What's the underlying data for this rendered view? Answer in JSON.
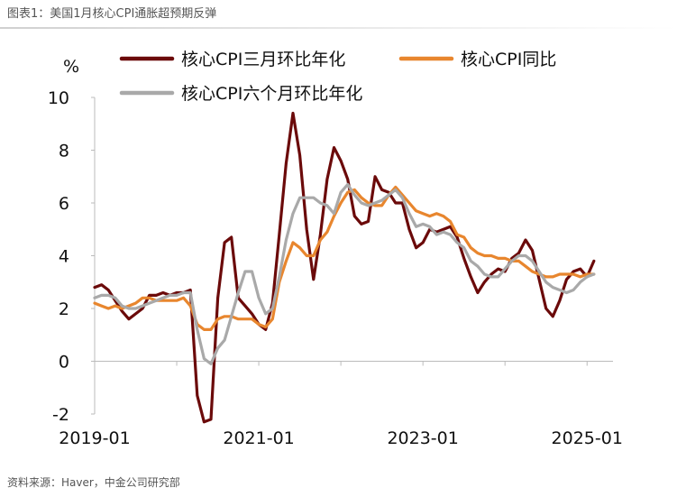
{
  "caption": "图表1：美国1月核心CPI通胀超预期反弹",
  "source": "资料来源：Haver，中金公司研究部",
  "colors": {
    "three_month": "#6b0a0a",
    "yoy": "#e8862e",
    "six_month": "#a9a9a9"
  },
  "chart_data": {
    "type": "line",
    "ylabel": "%",
    "ylim": [
      -2,
      10
    ],
    "yticks": [
      -2,
      0,
      2,
      4,
      6,
      8,
      10
    ],
    "xlim": [
      "2019-01",
      "2025-01"
    ],
    "xticks": [
      "2019-01",
      "2021-01",
      "2023-01",
      "2025-01"
    ],
    "legend": {
      "placement": "top"
    },
    "series": [
      {
        "name": "核心CPI三月环比年化",
        "color": "#6b0a0a",
        "points": [
          [
            "2019-01",
            2.8
          ],
          [
            "2019-02",
            2.9
          ],
          [
            "2019-03",
            2.7
          ],
          [
            "2019-04",
            2.3
          ],
          [
            "2019-05",
            1.9
          ],
          [
            "2019-06",
            1.6
          ],
          [
            "2019-07",
            1.8
          ],
          [
            "2019-08",
            2.0
          ],
          [
            "2019-09",
            2.5
          ],
          [
            "2019-10",
            2.5
          ],
          [
            "2019-11",
            2.6
          ],
          [
            "2019-12",
            2.5
          ],
          [
            "2020-01",
            2.6
          ],
          [
            "2020-02",
            2.6
          ],
          [
            "2020-03",
            2.7
          ],
          [
            "2020-04",
            -1.3
          ],
          [
            "2020-05",
            -2.3
          ],
          [
            "2020-06",
            -2.2
          ],
          [
            "2020-07",
            2.4
          ],
          [
            "2020-08",
            4.5
          ],
          [
            "2020-09",
            4.7
          ],
          [
            "2020-10",
            2.4
          ],
          [
            "2020-11",
            2.1
          ],
          [
            "2020-12",
            1.8
          ],
          [
            "2021-01",
            1.4
          ],
          [
            "2021-02",
            1.2
          ],
          [
            "2021-03",
            2.2
          ],
          [
            "2021-04",
            4.8
          ],
          [
            "2021-05",
            7.5
          ],
          [
            "2021-06",
            9.4
          ],
          [
            "2021-07",
            7.8
          ],
          [
            "2021-08",
            5.0
          ],
          [
            "2021-09",
            3.1
          ],
          [
            "2021-10",
            4.8
          ],
          [
            "2021-11",
            6.9
          ],
          [
            "2021-12",
            8.1
          ],
          [
            "2022-01",
            7.6
          ],
          [
            "2022-02",
            6.9
          ],
          [
            "2022-03",
            5.5
          ],
          [
            "2022-04",
            5.2
          ],
          [
            "2022-05",
            5.3
          ],
          [
            "2022-06",
            7.0
          ],
          [
            "2022-07",
            6.5
          ],
          [
            "2022-08",
            6.4
          ],
          [
            "2022-09",
            6.0
          ],
          [
            "2022-10",
            6.0
          ],
          [
            "2022-11",
            5.0
          ],
          [
            "2022-12",
            4.3
          ],
          [
            "2023-01",
            4.5
          ],
          [
            "2023-02",
            5.0
          ],
          [
            "2023-03",
            4.9
          ],
          [
            "2023-04",
            5.0
          ],
          [
            "2023-05",
            5.1
          ],
          [
            "2023-06",
            4.7
          ],
          [
            "2023-07",
            3.9
          ],
          [
            "2023-08",
            3.2
          ],
          [
            "2023-09",
            2.6
          ],
          [
            "2023-10",
            3.0
          ],
          [
            "2023-11",
            3.3
          ],
          [
            "2023-12",
            3.5
          ],
          [
            "2024-01",
            3.4
          ],
          [
            "2024-02",
            3.9
          ],
          [
            "2024-03",
            4.1
          ],
          [
            "2024-04",
            4.6
          ],
          [
            "2024-05",
            4.2
          ],
          [
            "2024-06",
            3.1
          ],
          [
            "2024-07",
            2.0
          ],
          [
            "2024-08",
            1.7
          ],
          [
            "2024-09",
            2.3
          ],
          [
            "2024-10",
            3.1
          ],
          [
            "2024-11",
            3.4
          ],
          [
            "2024-12",
            3.5
          ],
          [
            "2025-01",
            3.2
          ],
          [
            "2025-02",
            3.8
          ]
        ]
      },
      {
        "name": "核心CPI同比",
        "color": "#e8862e",
        "points": [
          [
            "2019-01",
            2.2
          ],
          [
            "2019-02",
            2.1
          ],
          [
            "2019-03",
            2.0
          ],
          [
            "2019-04",
            2.1
          ],
          [
            "2019-05",
            2.0
          ],
          [
            "2019-06",
            2.1
          ],
          [
            "2019-07",
            2.2
          ],
          [
            "2019-08",
            2.4
          ],
          [
            "2019-09",
            2.4
          ],
          [
            "2019-10",
            2.3
          ],
          [
            "2019-11",
            2.3
          ],
          [
            "2019-12",
            2.3
          ],
          [
            "2020-01",
            2.3
          ],
          [
            "2020-02",
            2.4
          ],
          [
            "2020-03",
            2.1
          ],
          [
            "2020-04",
            1.4
          ],
          [
            "2020-05",
            1.2
          ],
          [
            "2020-06",
            1.2
          ],
          [
            "2020-07",
            1.6
          ],
          [
            "2020-08",
            1.7
          ],
          [
            "2020-09",
            1.7
          ],
          [
            "2020-10",
            1.6
          ],
          [
            "2020-11",
            1.6
          ],
          [
            "2020-12",
            1.6
          ],
          [
            "2021-01",
            1.4
          ],
          [
            "2021-02",
            1.3
          ],
          [
            "2021-03",
            1.6
          ],
          [
            "2021-04",
            3.0
          ],
          [
            "2021-05",
            3.8
          ],
          [
            "2021-06",
            4.5
          ],
          [
            "2021-07",
            4.3
          ],
          [
            "2021-08",
            4.0
          ],
          [
            "2021-09",
            4.0
          ],
          [
            "2021-10",
            4.6
          ],
          [
            "2021-11",
            4.9
          ],
          [
            "2021-12",
            5.5
          ],
          [
            "2022-01",
            6.0
          ],
          [
            "2022-02",
            6.4
          ],
          [
            "2022-03",
            6.5
          ],
          [
            "2022-04",
            6.2
          ],
          [
            "2022-05",
            6.0
          ],
          [
            "2022-06",
            5.9
          ],
          [
            "2022-07",
            5.9
          ],
          [
            "2022-08",
            6.3
          ],
          [
            "2022-09",
            6.6
          ],
          [
            "2022-10",
            6.3
          ],
          [
            "2022-11",
            6.0
          ],
          [
            "2022-12",
            5.7
          ],
          [
            "2023-01",
            5.6
          ],
          [
            "2023-02",
            5.5
          ],
          [
            "2023-03",
            5.6
          ],
          [
            "2023-04",
            5.5
          ],
          [
            "2023-05",
            5.3
          ],
          [
            "2023-06",
            4.8
          ],
          [
            "2023-07",
            4.7
          ],
          [
            "2023-08",
            4.3
          ],
          [
            "2023-09",
            4.1
          ],
          [
            "2023-10",
            4.0
          ],
          [
            "2023-11",
            4.0
          ],
          [
            "2023-12",
            3.9
          ],
          [
            "2024-01",
            3.9
          ],
          [
            "2024-02",
            3.8
          ],
          [
            "2024-03",
            3.8
          ],
          [
            "2024-04",
            3.6
          ],
          [
            "2024-05",
            3.4
          ],
          [
            "2024-06",
            3.3
          ],
          [
            "2024-07",
            3.2
          ],
          [
            "2024-08",
            3.2
          ],
          [
            "2024-09",
            3.3
          ],
          [
            "2024-10",
            3.3
          ],
          [
            "2024-11",
            3.3
          ],
          [
            "2024-12",
            3.2
          ],
          [
            "2025-01",
            3.3
          ],
          [
            "2025-02",
            3.3
          ]
        ]
      },
      {
        "name": "核心CPI六个月环比年化",
        "color": "#a9a9a9",
        "points": [
          [
            "2019-01",
            2.4
          ],
          [
            "2019-02",
            2.5
          ],
          [
            "2019-03",
            2.5
          ],
          [
            "2019-04",
            2.4
          ],
          [
            "2019-05",
            2.1
          ],
          [
            "2019-06",
            2.0
          ],
          [
            "2019-07",
            2.0
          ],
          [
            "2019-08",
            2.1
          ],
          [
            "2019-09",
            2.2
          ],
          [
            "2019-10",
            2.3
          ],
          [
            "2019-11",
            2.4
          ],
          [
            "2019-12",
            2.5
          ],
          [
            "2020-01",
            2.5
          ],
          [
            "2020-02",
            2.6
          ],
          [
            "2020-03",
            2.6
          ],
          [
            "2020-04",
            1.2
          ],
          [
            "2020-05",
            0.1
          ],
          [
            "2020-06",
            -0.1
          ],
          [
            "2020-07",
            0.5
          ],
          [
            "2020-08",
            0.8
          ],
          [
            "2020-09",
            1.7
          ],
          [
            "2020-10",
            2.6
          ],
          [
            "2020-11",
            3.4
          ],
          [
            "2020-12",
            3.4
          ],
          [
            "2021-01",
            2.4
          ],
          [
            "2021-02",
            1.8
          ],
          [
            "2021-03",
            2.0
          ],
          [
            "2021-04",
            3.2
          ],
          [
            "2021-05",
            4.6
          ],
          [
            "2021-06",
            5.6
          ],
          [
            "2021-07",
            6.2
          ],
          [
            "2021-08",
            6.2
          ],
          [
            "2021-09",
            6.2
          ],
          [
            "2021-10",
            6.0
          ],
          [
            "2021-11",
            5.9
          ],
          [
            "2021-12",
            5.6
          ],
          [
            "2022-01",
            6.4
          ],
          [
            "2022-02",
            6.7
          ],
          [
            "2022-03",
            6.3
          ],
          [
            "2022-04",
            6.0
          ],
          [
            "2022-05",
            5.9
          ],
          [
            "2022-06",
            6.0
          ],
          [
            "2022-07",
            6.1
          ],
          [
            "2022-08",
            6.3
          ],
          [
            "2022-09",
            6.5
          ],
          [
            "2022-10",
            6.2
          ],
          [
            "2022-11",
            5.6
          ],
          [
            "2022-12",
            5.1
          ],
          [
            "2023-01",
            5.2
          ],
          [
            "2023-02",
            5.1
          ],
          [
            "2023-03",
            4.8
          ],
          [
            "2023-04",
            4.9
          ],
          [
            "2023-05",
            4.8
          ],
          [
            "2023-06",
            4.5
          ],
          [
            "2023-07",
            4.3
          ],
          [
            "2023-08",
            3.8
          ],
          [
            "2023-09",
            3.6
          ],
          [
            "2023-10",
            3.3
          ],
          [
            "2023-11",
            3.2
          ],
          [
            "2023-12",
            3.2
          ],
          [
            "2024-01",
            3.5
          ],
          [
            "2024-02",
            3.8
          ],
          [
            "2024-03",
            4.0
          ],
          [
            "2024-04",
            4.0
          ],
          [
            "2024-05",
            3.8
          ],
          [
            "2024-06",
            3.4
          ],
          [
            "2024-07",
            3.0
          ],
          [
            "2024-08",
            2.8
          ],
          [
            "2024-09",
            2.7
          ],
          [
            "2024-10",
            2.6
          ],
          [
            "2024-11",
            2.7
          ],
          [
            "2024-12",
            3.0
          ],
          [
            "2025-01",
            3.2
          ],
          [
            "2025-02",
            3.3
          ]
        ]
      }
    ]
  }
}
